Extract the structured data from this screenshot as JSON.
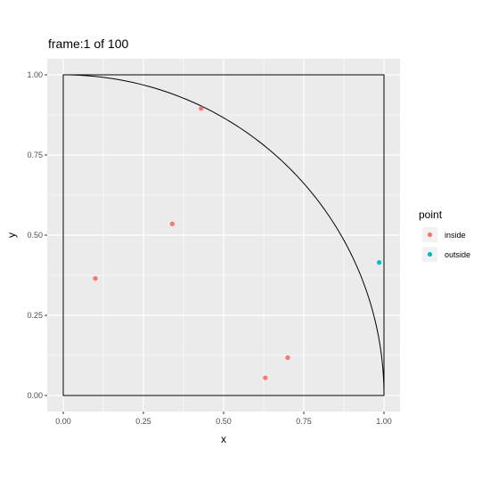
{
  "chart_data": {
    "type": "scatter",
    "title": "frame:1 of 100",
    "xlabel": "x",
    "ylabel": "y",
    "xlim": [
      0,
      1
    ],
    "ylim": [
      0,
      1
    ],
    "x_ticks": [
      "0.00",
      "0.25",
      "0.50",
      "0.75",
      "1.00"
    ],
    "y_ticks": [
      "0.00",
      "0.25",
      "0.50",
      "0.75",
      "1.00"
    ],
    "grid": true,
    "legend": {
      "title": "point",
      "position": "right",
      "entries": [
        {
          "label": "inside",
          "color": "#F8766D"
        },
        {
          "label": "outside",
          "color": "#00BFC4"
        }
      ]
    },
    "series": [
      {
        "name": "inside",
        "color": "#F8766D",
        "points": [
          {
            "x": 0.1,
            "y": 0.365
          },
          {
            "x": 0.34,
            "y": 0.535
          },
          {
            "x": 0.43,
            "y": 0.895
          },
          {
            "x": 0.63,
            "y": 0.055
          },
          {
            "x": 0.7,
            "y": 0.118
          }
        ]
      },
      {
        "name": "outside",
        "color": "#00BFC4",
        "points": [
          {
            "x": 0.985,
            "y": 0.415
          }
        ]
      }
    ],
    "annotations": [
      "unit square outline",
      "quarter circle arc of radius 1"
    ]
  }
}
